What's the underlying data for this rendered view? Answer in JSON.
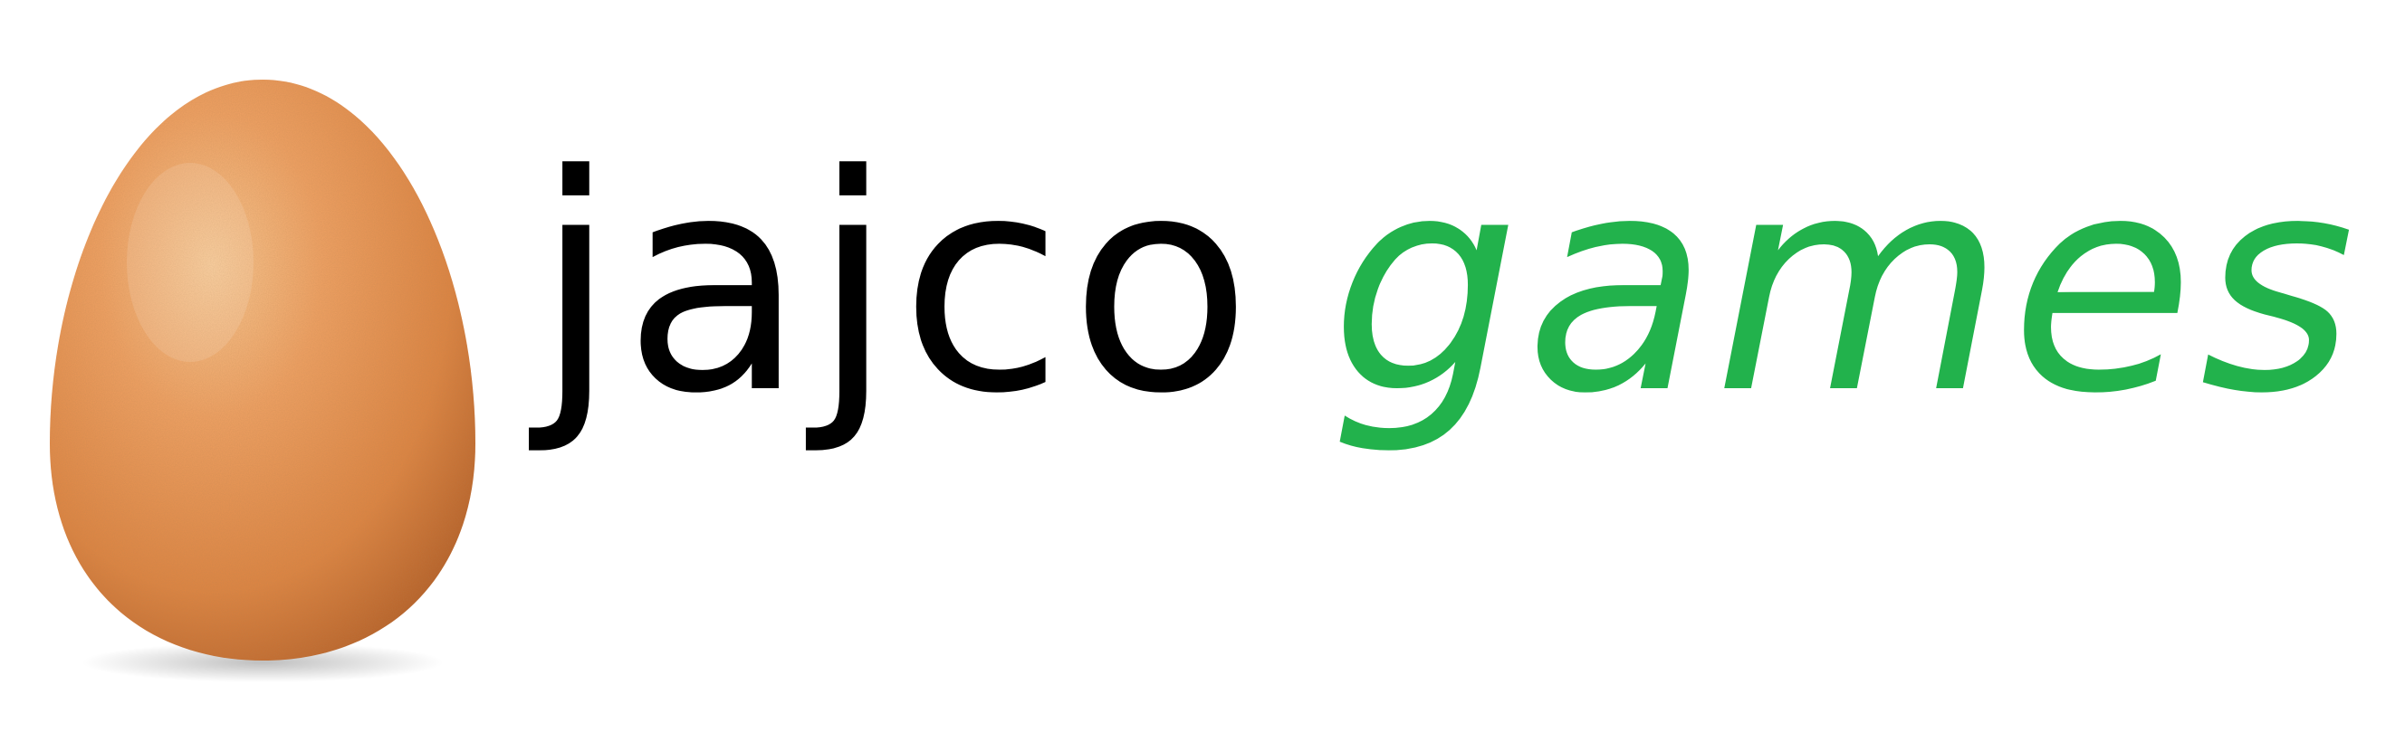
{
  "logo": {
    "word_first": "jajco",
    "word_second": "games",
    "colors": {
      "word_first": "#000000",
      "word_second": "#22b24c",
      "egg_base": "#e08a45",
      "egg_highlight": "#f6c08a",
      "egg_shadow": "#b8632a",
      "background": "#ffffff"
    },
    "icon": "egg-icon"
  }
}
